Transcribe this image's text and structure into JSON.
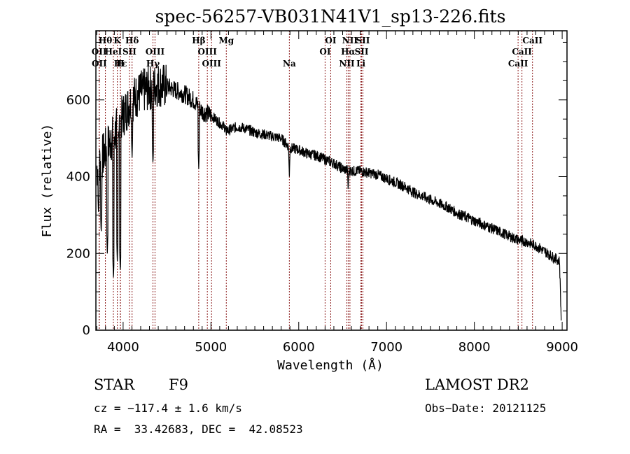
{
  "chart_data": {
    "type": "line",
    "title": "spec-56257-VB031N41V1_sp13-226.fits",
    "xlabel": "Wavelength (Å)",
    "ylabel": "Flux (relative)",
    "xlim": [
      3690,
      9055
    ],
    "ylim": [
      0,
      780
    ],
    "xticks": [
      4000,
      5000,
      6000,
      7000,
      8000,
      9000
    ],
    "xtick_labels": [
      "4000",
      "5000",
      "6000",
      "7000",
      "8000",
      "9000"
    ],
    "yticks": [
      0,
      200,
      400,
      600
    ],
    "ytick_labels": [
      "0",
      "200",
      "400",
      "600"
    ],
    "grid": false,
    "series": [
      {
        "name": "spectrum",
        "color": "#000000",
        "continuum": [
          [
            3700,
            420
          ],
          [
            3800,
            470
          ],
          [
            3900,
            510
          ],
          [
            4000,
            560
          ],
          [
            4100,
            600
          ],
          [
            4200,
            620
          ],
          [
            4300,
            630
          ],
          [
            4400,
            640
          ],
          [
            4500,
            635
          ],
          [
            4600,
            625
          ],
          [
            4700,
            615
          ],
          [
            4800,
            600
          ],
          [
            4900,
            570
          ],
          [
            5000,
            560
          ],
          [
            5100,
            540
          ],
          [
            5200,
            520
          ],
          [
            5300,
            530
          ],
          [
            5400,
            525
          ],
          [
            5500,
            515
          ],
          [
            5600,
            510
          ],
          [
            5700,
            505
          ],
          [
            5800,
            500
          ],
          [
            5900,
            475
          ],
          [
            6000,
            470
          ],
          [
            6100,
            460
          ],
          [
            6200,
            455
          ],
          [
            6300,
            445
          ],
          [
            6400,
            435
          ],
          [
            6500,
            420
          ],
          [
            6600,
            415
          ],
          [
            6700,
            415
          ],
          [
            6800,
            410
          ],
          [
            6900,
            405
          ],
          [
            7000,
            395
          ],
          [
            7100,
            385
          ],
          [
            7200,
            375
          ],
          [
            7300,
            360
          ],
          [
            7400,
            350
          ],
          [
            7500,
            340
          ],
          [
            7600,
            330
          ],
          [
            7700,
            320
          ],
          [
            7800,
            305
          ],
          [
            7900,
            295
          ],
          [
            8000,
            285
          ],
          [
            8100,
            275
          ],
          [
            8200,
            265
          ],
          [
            8300,
            255
          ],
          [
            8400,
            245
          ],
          [
            8500,
            235
          ],
          [
            8600,
            230
          ],
          [
            8700,
            220
          ],
          [
            8800,
            205
          ],
          [
            8900,
            190
          ],
          [
            8970,
            180
          ],
          [
            8990,
            20
          ]
        ],
        "absorption_dips": [
          [
            3720,
            300
          ],
          [
            3750,
            250
          ],
          [
            3820,
            200
          ],
          [
            3890,
            130
          ],
          [
            3934,
            180
          ],
          [
            3968,
            150
          ],
          [
            4102,
            450
          ],
          [
            4340,
            430
          ],
          [
            4861,
            420
          ],
          [
            5175,
            500
          ],
          [
            5893,
            400
          ],
          [
            6563,
            360
          ],
          [
            8542,
            220
          ],
          [
            8662,
            215
          ]
        ]
      }
    ],
    "spectral_lines": [
      {
        "label": "Hθ",
        "wavelength": 3798,
        "row": 1
      },
      {
        "label": "K",
        "wavelength": 3934,
        "row": 1
      },
      {
        "label": "Hδ",
        "wavelength": 4102,
        "row": 1
      },
      {
        "label": "Hβ",
        "wavelength": 4861,
        "row": 1
      },
      {
        "label": "Mg",
        "wavelength": 5175,
        "row": 1
      },
      {
        "label": "OI",
        "wavelength": 6364,
        "row": 1
      },
      {
        "label": "NII",
        "wavelength": 6583,
        "row": 1
      },
      {
        "label": "SII",
        "wavelength": 6731,
        "row": 1
      },
      {
        "label": "CaII",
        "wavelength": 8662,
        "row": 1
      },
      {
        "label": "OII",
        "wavelength": 3727,
        "row": 2
      },
      {
        "label": "HeI",
        "wavelength": 3889,
        "row": 2
      },
      {
        "label": "SII",
        "wavelength": 4072,
        "row": 2
      },
      {
        "label": "OIII",
        "wavelength": 4363,
        "row": 2
      },
      {
        "label": "OIII",
        "wavelength": 4959,
        "row": 2
      },
      {
        "label": "OI",
        "wavelength": 6300,
        "row": 2
      },
      {
        "label": "Hα",
        "wavelength": 6563,
        "row": 2
      },
      {
        "label": "SII",
        "wavelength": 6716,
        "row": 2
      },
      {
        "label": "CaII",
        "wavelength": 8542,
        "row": 2
      },
      {
        "label": "OII",
        "wavelength": 3729,
        "row": 3
      },
      {
        "label": "Hε",
        "wavelength": 3970,
        "row": 3
      },
      {
        "label": "H",
        "wavelength": 3968,
        "row": 3
      },
      {
        "label": "Hγ",
        "wavelength": 4340,
        "row": 3
      },
      {
        "label": "OIII",
        "wavelength": 5007,
        "row": 3
      },
      {
        "label": "Na",
        "wavelength": 5893,
        "row": 3
      },
      {
        "label": "NII",
        "wavelength": 6548,
        "row": 3
      },
      {
        "label": "Li",
        "wavelength": 6708,
        "row": 3
      },
      {
        "label": "CaII",
        "wavelength": 8498,
        "row": 3
      }
    ],
    "line_marker_color": "#8b1a1a"
  },
  "info": {
    "object_class": "STAR",
    "subclass": "F9",
    "redshift": "cz = −117.4 ± 1.6 km/s",
    "coords": "RA =  33.42683, DEC =  42.08523",
    "survey": "LAMOST DR2",
    "obs_date": "Obs−Date: 20121125"
  }
}
